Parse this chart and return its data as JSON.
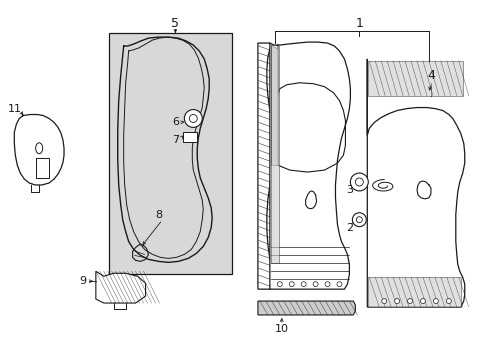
{
  "background_color": "#ffffff",
  "line_color": "#1a1a1a",
  "fig_width": 4.89,
  "fig_height": 3.6,
  "dpi": 100,
  "box5_fill": "#d8d8d8",
  "label_color": "#000000"
}
